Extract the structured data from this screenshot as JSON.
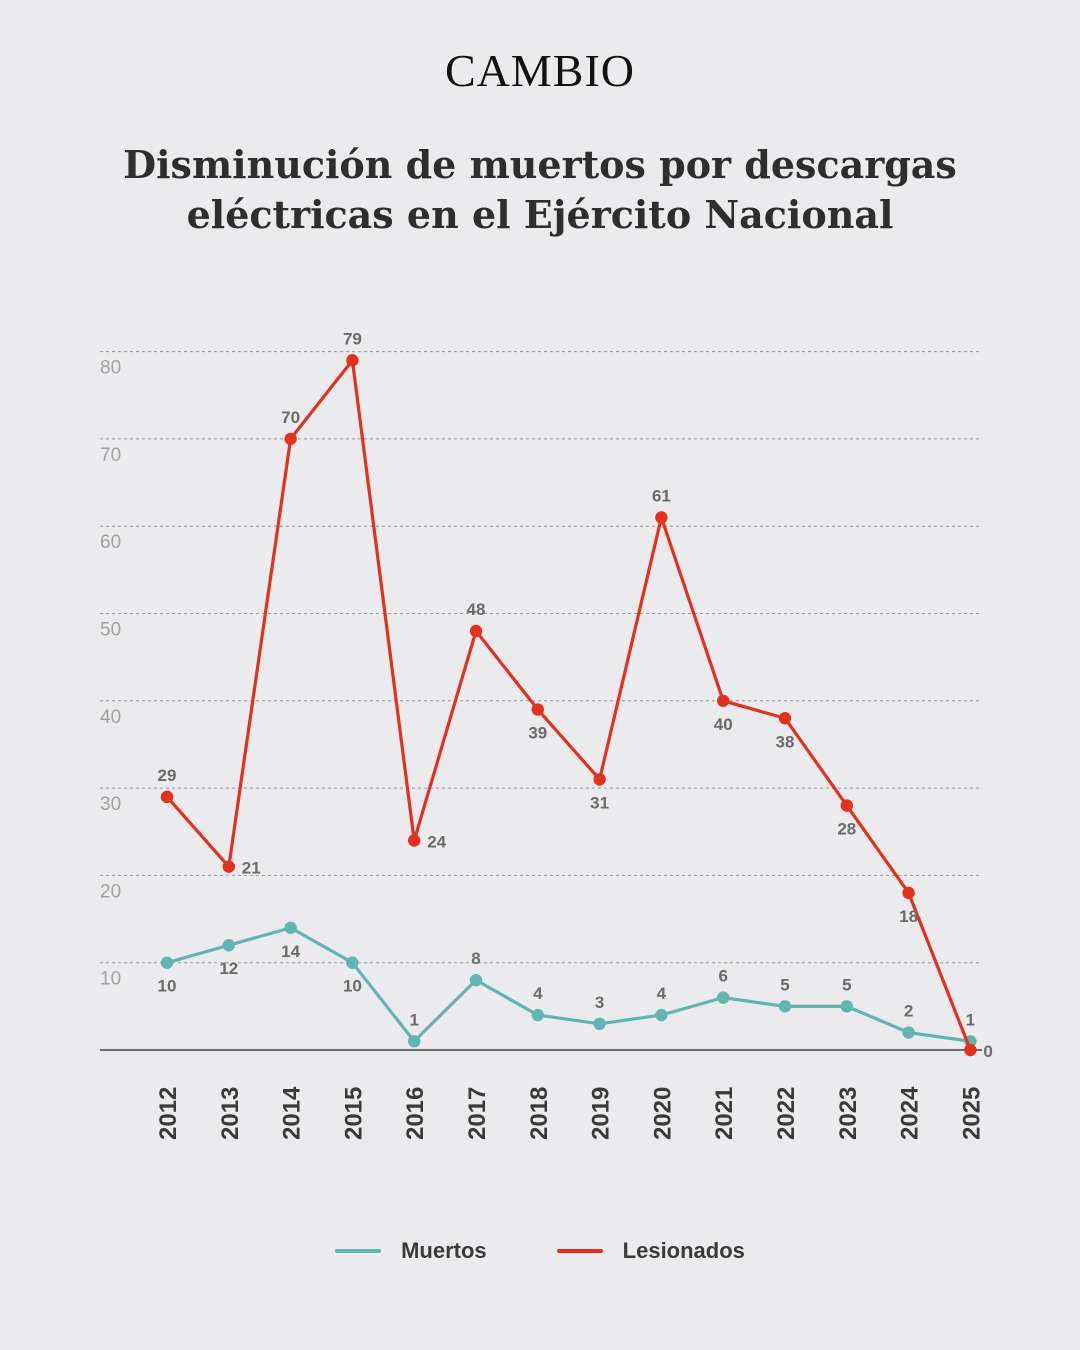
{
  "brand": {
    "logo": "CAMBIO"
  },
  "title_line1": "Disminución de muertos por descargas",
  "title_line2": "eléctricas en el Ejército Nacional",
  "chart_data": {
    "type": "line",
    "title": "Disminución de muertos por descargas eléctricas en el Ejército Nacional",
    "xlabel": "",
    "ylabel": "",
    "categories": [
      "2012",
      "2013",
      "2014",
      "2015",
      "2016",
      "2017",
      "2018",
      "2019",
      "2020",
      "2021",
      "2022",
      "2023",
      "2024",
      "2025"
    ],
    "ylim": [
      0,
      80
    ],
    "yticks": [
      10,
      20,
      30,
      40,
      50,
      60,
      70,
      80
    ],
    "grid": true,
    "legend_position": "bottom",
    "series": [
      {
        "name": "Muertos",
        "color": "#63b5b1",
        "values": [
          10,
          12,
          14,
          10,
          1,
          8,
          4,
          3,
          4,
          6,
          5,
          5,
          2,
          1
        ],
        "label_pos": [
          "below",
          "below",
          "below",
          "below",
          "above",
          "above",
          "above",
          "above",
          "above",
          "above",
          "above",
          "above",
          "above",
          "above"
        ]
      },
      {
        "name": "Lesionados",
        "color": "#e2311d",
        "values": [
          29,
          21,
          70,
          79,
          24,
          48,
          39,
          31,
          61,
          40,
          38,
          28,
          18,
          0
        ],
        "label_pos": [
          "above",
          "right",
          "above",
          "above",
          "right",
          "above",
          "below",
          "below",
          "above",
          "below",
          "below",
          "below",
          "below",
          "right"
        ]
      }
    ]
  }
}
